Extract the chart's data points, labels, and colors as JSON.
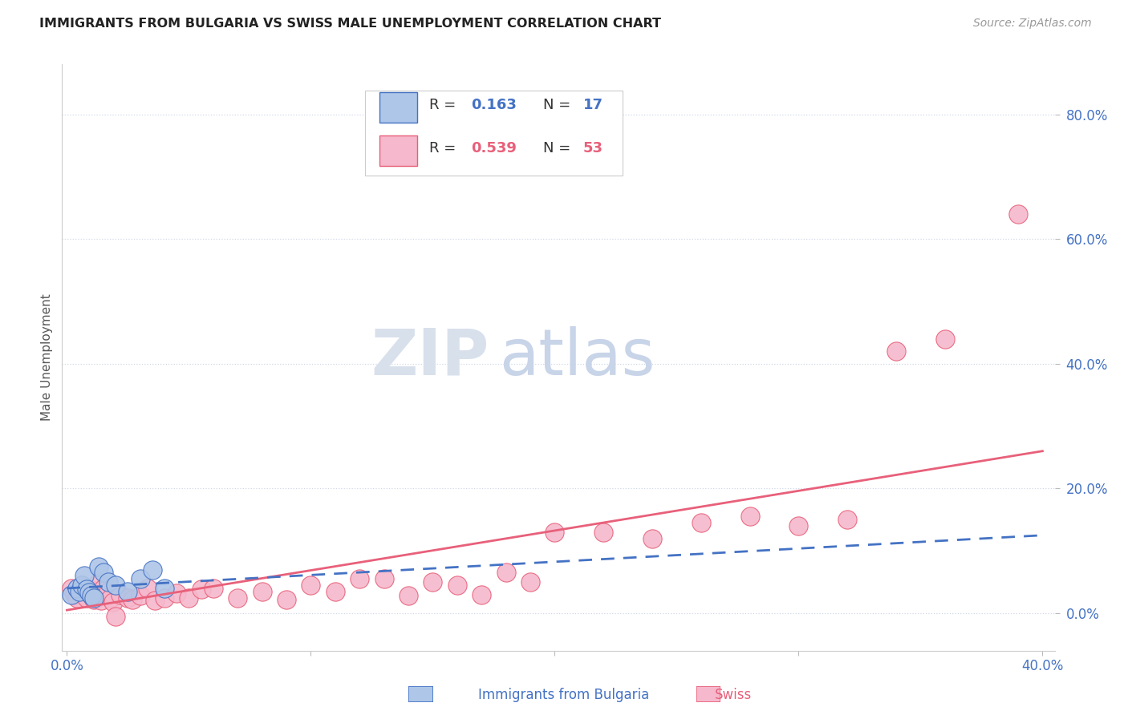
{
  "title": "IMMIGRANTS FROM BULGARIA VS SWISS MALE UNEMPLOYMENT CORRELATION CHART",
  "source": "Source: ZipAtlas.com",
  "ylabel": "Male Unemployment",
  "ytick_labels": [
    "0.0%",
    "20.0%",
    "40.0%",
    "60.0%",
    "80.0%"
  ],
  "ytick_values": [
    0.0,
    0.2,
    0.4,
    0.6,
    0.8
  ],
  "xlim": [
    -0.002,
    0.405
  ],
  "ylim": [
    -0.06,
    0.88
  ],
  "legend_r_blue": "R = 0.163",
  "legend_n_blue": "N = 17",
  "legend_r_pink": "R = 0.539",
  "legend_n_pink": "N = 53",
  "blue_color": "#aec6e8",
  "blue_line_color": "#4472c4",
  "pink_color": "#f5b8cc",
  "pink_line_color": "#e8607a",
  "grid_color": "#d0d8e8",
  "title_color": "#222222",
  "source_color": "#999999",
  "watermark_zip_color": "#d8e0ec",
  "watermark_atlas_color": "#c8d4e8",
  "blue_scatter_x": [
    0.002,
    0.004,
    0.005,
    0.006,
    0.007,
    0.008,
    0.009,
    0.01,
    0.011,
    0.013,
    0.015,
    0.017,
    0.02,
    0.025,
    0.03,
    0.035,
    0.04
  ],
  "blue_scatter_y": [
    0.03,
    0.04,
    0.035,
    0.045,
    0.06,
    0.038,
    0.033,
    0.028,
    0.025,
    0.075,
    0.065,
    0.05,
    0.045,
    0.035,
    0.055,
    0.07,
    0.04
  ],
  "pink_scatter_x": [
    0.002,
    0.003,
    0.004,
    0.005,
    0.006,
    0.007,
    0.008,
    0.009,
    0.01,
    0.011,
    0.012,
    0.013,
    0.014,
    0.015,
    0.016,
    0.017,
    0.018,
    0.019,
    0.02,
    0.022,
    0.025,
    0.027,
    0.03,
    0.033,
    0.036,
    0.04,
    0.045,
    0.05,
    0.055,
    0.06,
    0.07,
    0.08,
    0.09,
    0.1,
    0.11,
    0.12,
    0.13,
    0.14,
    0.15,
    0.16,
    0.17,
    0.18,
    0.19,
    0.2,
    0.22,
    0.24,
    0.26,
    0.28,
    0.3,
    0.32,
    0.34,
    0.36,
    0.39
  ],
  "pink_scatter_y": [
    0.04,
    0.03,
    0.025,
    0.035,
    0.045,
    0.03,
    0.025,
    0.038,
    0.028,
    0.022,
    0.035,
    0.05,
    0.02,
    0.04,
    0.028,
    0.035,
    0.025,
    0.018,
    -0.005,
    0.03,
    0.025,
    0.022,
    0.028,
    0.04,
    0.02,
    0.025,
    0.032,
    0.025,
    0.038,
    0.04,
    0.025,
    0.035,
    0.022,
    0.045,
    0.035,
    0.055,
    0.055,
    0.028,
    0.05,
    0.045,
    0.03,
    0.065,
    0.05,
    0.13,
    0.13,
    0.12,
    0.145,
    0.155,
    0.14,
    0.15,
    0.42,
    0.44,
    0.64
  ],
  "blue_trend_x": [
    0.0,
    0.4
  ],
  "blue_trend_y": [
    0.04,
    0.125
  ],
  "pink_trend_x": [
    0.0,
    0.4
  ],
  "pink_trend_y": [
    0.005,
    0.26
  ]
}
